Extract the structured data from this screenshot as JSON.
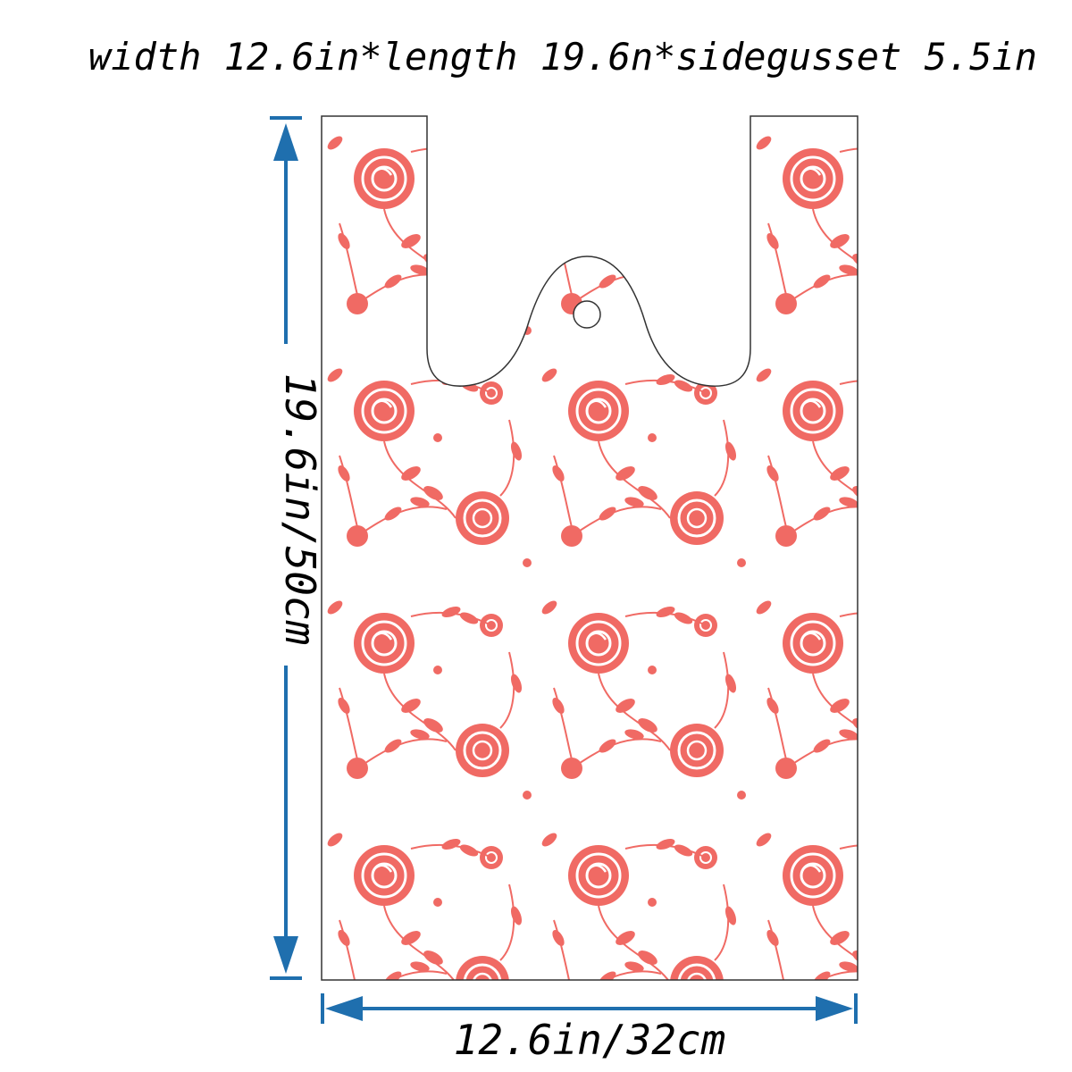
{
  "header": {
    "title": "width 12.6in*length 19.6n*sidegusset 5.5in"
  },
  "dimensions": {
    "length": "19.6in/50cm",
    "width": "12.6in/32cm"
  }
}
